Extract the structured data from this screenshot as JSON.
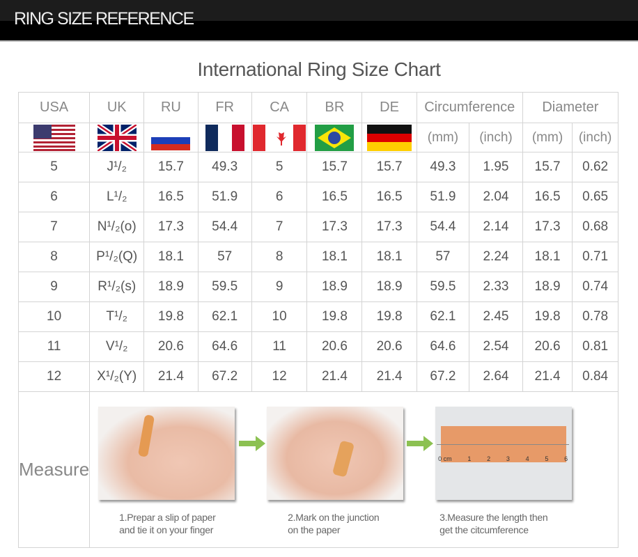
{
  "header": {
    "title": "RING SIZE REFERENCE"
  },
  "chart_title": "International Ring Size Chart",
  "columns": [
    "USA",
    "UK",
    "RU",
    "FR",
    "CA",
    "BR",
    "DE",
    "Circumference",
    "Diameter"
  ],
  "subunits": [
    "(mm)",
    "(inch)",
    "(mm)",
    "(inch)"
  ],
  "flags": [
    "usa-flag",
    "uk-flag",
    "russia-flag",
    "france-flag",
    "canada-flag",
    "brazil-flag",
    "germany-flag"
  ],
  "rows": [
    [
      "5",
      "J¹/₂",
      "15.7",
      "49.3",
      "5",
      "15.7",
      "15.7",
      "49.3",
      "1.95",
      "15.7",
      "0.62"
    ],
    [
      "6",
      "L¹/₂",
      "16.5",
      "51.9",
      "6",
      "16.5",
      "16.5",
      "51.9",
      "2.04",
      "16.5",
      "0.65"
    ],
    [
      "7",
      "N¹/₂(o)",
      "17.3",
      "54.4",
      "7",
      "17.3",
      "17.3",
      "54.4",
      "2.14",
      "17.3",
      "0.68"
    ],
    [
      "8",
      "P¹/₂(Q)",
      "18.1",
      "57",
      "8",
      "18.1",
      "18.1",
      "57",
      "2.24",
      "18.1",
      "0.71"
    ],
    [
      "9",
      "R¹/₂(s)",
      "18.9",
      "59.5",
      "9",
      "18.9",
      "18.9",
      "59.5",
      "2.33",
      "18.9",
      "0.74"
    ],
    [
      "10",
      "T¹/₂",
      "19.8",
      "62.1",
      "10",
      "19.8",
      "19.8",
      "62.1",
      "2.45",
      "19.8",
      "0.78"
    ],
    [
      "11",
      "V¹/₂",
      "20.6",
      "64.6",
      "11",
      "20.6",
      "20.6",
      "64.6",
      "2.54",
      "20.6",
      "0.81"
    ],
    [
      "12",
      "X¹/₂(Y)",
      "21.4",
      "67.2",
      "12",
      "21.4",
      "21.4",
      "67.2",
      "2.64",
      "21.4",
      "0.84"
    ]
  ],
  "measure": {
    "label": "Measure",
    "steps": [
      {
        "line1": "1.Prepar a slip of paper",
        "line2": "and tie it on your finger"
      },
      {
        "line1": "2.Mark on the junction",
        "line2": "on the paper"
      },
      {
        "line1": "3.Measure the length then",
        "line2": "get the citcumference"
      }
    ],
    "ruler_labels": [
      "0 cm",
      "1",
      "2",
      "3",
      "4",
      "5",
      "6"
    ]
  }
}
